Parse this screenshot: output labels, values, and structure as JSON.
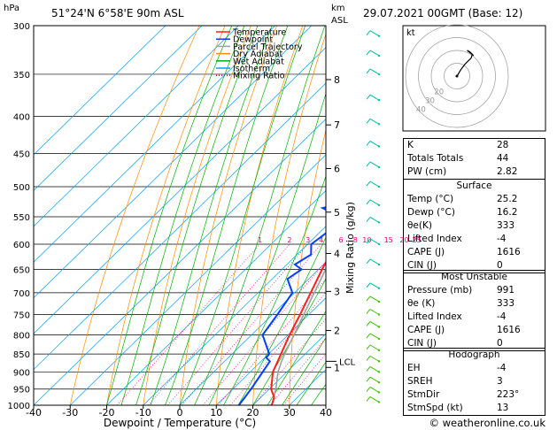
{
  "header": {
    "pressure_unit": "hPa",
    "location": "51°24'N 6°58'E 90m ASL",
    "height_unit_km": "km",
    "height_unit_asl": "ASL",
    "datetime": "29.07.2021 00GMT (Base: 12)"
  },
  "legend": [
    {
      "label": "Temperature",
      "color": "#ff2020",
      "style": "solid"
    },
    {
      "label": "Dewpoint",
      "color": "#0040ff",
      "style": "solid"
    },
    {
      "label": "Parcel Trajectory",
      "color": "#a0a0a0",
      "style": "solid"
    },
    {
      "label": "Dry Adiabat",
      "color": "#ff8c00",
      "style": "solid"
    },
    {
      "label": "Wet Adiabat",
      "color": "#00b000",
      "style": "solid"
    },
    {
      "label": "Isotherm",
      "color": "#00a0ff",
      "style": "solid"
    },
    {
      "label": "Mixing Ratio",
      "color": "#e0007a",
      "style": "dotted"
    }
  ],
  "chart_data": {
    "type": "line",
    "chart_kind": "skew-T log-P",
    "xlabel": "Dewpoint / Temperature (°C)",
    "ylabel_right": "Mixing Ratio (g/kg)",
    "xlim": [
      -40,
      40
    ],
    "ylim": [
      1000,
      300
    ],
    "x_ticks": [
      -40,
      -30,
      -20,
      -10,
      0,
      10,
      20,
      30,
      40
    ],
    "pressure_ticks": [
      300,
      350,
      400,
      450,
      500,
      550,
      600,
      650,
      700,
      750,
      800,
      850,
      900,
      950,
      1000
    ],
    "height_ticks": [
      {
        "label": "8",
        "p": 356
      },
      {
        "label": "7",
        "p": 411
      },
      {
        "label": "6",
        "p": 472
      },
      {
        "label": "5",
        "p": 542
      },
      {
        "label": "4",
        "p": 618
      },
      {
        "label": "3",
        "p": 697
      },
      {
        "label": "2",
        "p": 789
      },
      {
        "label": "1",
        "p": 887
      }
    ],
    "lcl": {
      "label": "LCL",
      "p": 870
    },
    "mixing_ratio_labels": [
      "1",
      "2",
      "3",
      "4",
      "6",
      "8",
      "10",
      "15",
      "20",
      "25"
    ],
    "mixing_ratio_values": [
      1,
      2,
      3,
      4,
      6,
      8,
      10,
      15,
      20,
      25
    ],
    "series": [
      {
        "name": "Temperature",
        "color": "#ff2020",
        "points": [
          [
            1000,
            25.2
          ],
          [
            975,
            23.6
          ],
          [
            950,
            20.5
          ],
          [
            925,
            18.4
          ],
          [
            900,
            16.2
          ],
          [
            850,
            13.4
          ],
          [
            800,
            10.4
          ],
          [
            750,
            7.6
          ],
          [
            700,
            4.4
          ],
          [
            650,
            1.0
          ],
          [
            600,
            -2.4
          ],
          [
            550,
            -6.2
          ],
          [
            500,
            -10.6
          ],
          [
            450,
            -16.0
          ],
          [
            400,
            -22.2
          ],
          [
            350,
            -29.4
          ],
          [
            300,
            -38.6
          ]
        ]
      },
      {
        "name": "Dewpoint",
        "color": "#0040ff",
        "points": [
          [
            1000,
            16.2
          ],
          [
            975,
            15.6
          ],
          [
            950,
            15.0
          ],
          [
            900,
            13.4
          ],
          [
            870,
            12.4
          ],
          [
            860,
            10.4
          ],
          [
            850,
            10.2
          ],
          [
            800,
            3.0
          ],
          [
            750,
            1.4
          ],
          [
            700,
            -0.6
          ],
          [
            670,
            -5.8
          ],
          [
            650,
            -4.6
          ],
          [
            640,
            -7.8
          ],
          [
            620,
            -6.2
          ],
          [
            600,
            -9.0
          ],
          [
            570,
            -7.6
          ],
          [
            550,
            -9.0
          ],
          [
            535,
            -16.0
          ],
          [
            525,
            -10.6
          ],
          [
            515,
            -17.0
          ],
          [
            505,
            -17.4
          ],
          [
            500,
            -18.6
          ],
          [
            480,
            -19.8
          ],
          [
            450,
            -21.0
          ],
          [
            420,
            -25.4
          ],
          [
            400,
            -28.6
          ],
          [
            370,
            -35.2
          ],
          [
            350,
            -40.2
          ],
          [
            330,
            -41.8
          ],
          [
            300,
            -46.6
          ]
        ]
      },
      {
        "name": "Parcel Trajectory",
        "color": "#a0a0a0",
        "points": [
          [
            1000,
            25.2
          ],
          [
            950,
            21.8
          ],
          [
            900,
            17.6
          ],
          [
            870,
            15.6
          ],
          [
            850,
            14.4
          ],
          [
            800,
            11.6
          ],
          [
            750,
            8.6
          ],
          [
            700,
            5.4
          ],
          [
            650,
            2.0
          ],
          [
            600,
            -1.4
          ],
          [
            550,
            -5.2
          ],
          [
            500,
            -9.4
          ],
          [
            450,
            -14.4
          ],
          [
            400,
            -20.0
          ],
          [
            350,
            -27.2
          ],
          [
            300,
            -36.4
          ]
        ]
      }
    ]
  },
  "hodograph": {
    "unit_label": "kt",
    "rings": [
      10,
      20,
      30,
      40
    ],
    "ring_labels": [
      "20",
      "30",
      "40"
    ],
    "trace_kt": [
      [
        0,
        0
      ],
      [
        3,
        5
      ],
      [
        6,
        9
      ],
      [
        9,
        12
      ],
      [
        11,
        14
      ],
      [
        12,
        17
      ],
      [
        10,
        19
      ],
      [
        8,
        20
      ],
      [
        13,
        16
      ]
    ]
  },
  "indices": {
    "rows": [
      {
        "label": "K",
        "value": "28"
      },
      {
        "label": "Totals Totals",
        "value": "44"
      },
      {
        "label": "PW (cm)",
        "value": "2.82"
      }
    ]
  },
  "surface": {
    "title": "Surface",
    "rows": [
      {
        "label": "Temp (°C)",
        "value": "25.2"
      },
      {
        "label": "Dewp (°C)",
        "value": "16.2"
      },
      {
        "label": "θe(K)",
        "value": "333"
      },
      {
        "label": "Lifted Index",
        "value": "-4"
      },
      {
        "label": "CAPE (J)",
        "value": "1616"
      },
      {
        "label": "CIN (J)",
        "value": "0"
      }
    ]
  },
  "most_unstable": {
    "title": "Most Unstable",
    "rows": [
      {
        "label": "Pressure (mb)",
        "value": "991"
      },
      {
        "label": "θe (K)",
        "value": "333"
      },
      {
        "label": "Lifted Index",
        "value": "-4"
      },
      {
        "label": "CAPE (J)",
        "value": "1616"
      },
      {
        "label": "CIN (J)",
        "value": "0"
      }
    ]
  },
  "hodograph_table": {
    "title": "Hodograph",
    "rows": [
      {
        "label": "EH",
        "value": "-4"
      },
      {
        "label": "SREH",
        "value": "3"
      },
      {
        "label": "StmDir",
        "value": "223°"
      },
      {
        "label": "StmSpd (kt)",
        "value": "13"
      }
    ]
  },
  "footer": {
    "credit": "© weatheronline.co.uk"
  }
}
